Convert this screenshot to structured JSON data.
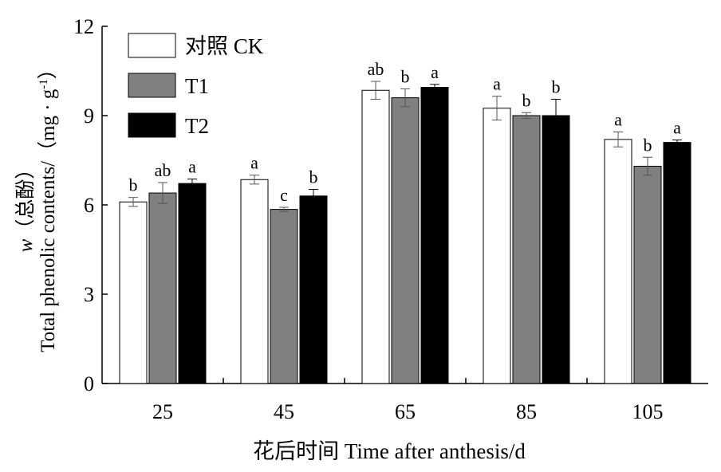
{
  "chart_data": {
    "type": "bar",
    "ylabel_line1_italic": "w",
    "ylabel_line1_rest": "（总酚）",
    "ylabel_line2_main": "Total phenolic contents/（mg · g",
    "ylabel_line2_sup": "-1",
    "ylabel_line2_end": "）",
    "xlabel": "花后时间 Time after anthesis/d",
    "categories": [
      "25",
      "45",
      "65",
      "85",
      "105"
    ],
    "ylim": [
      0,
      12
    ],
    "yticks": [
      0,
      3,
      6,
      9,
      12
    ],
    "legend_position": "top-left",
    "series": [
      {
        "name": "对照 CK",
        "color": "#ffffff",
        "values": [
          6.1,
          6.85,
          9.85,
          9.25,
          8.2
        ],
        "errors": [
          0.15,
          0.15,
          0.3,
          0.4,
          0.25
        ],
        "letters": [
          "b",
          "a",
          "ab",
          "a",
          "a"
        ]
      },
      {
        "name": "T1",
        "color": "#808080",
        "values": [
          6.4,
          5.85,
          9.6,
          9.0,
          7.3
        ],
        "errors": [
          0.35,
          0.07,
          0.3,
          0.1,
          0.3
        ],
        "letters": [
          "ab",
          "c",
          "b",
          "b",
          "b"
        ]
      },
      {
        "name": "T2",
        "color": "#000000",
        "values": [
          6.72,
          6.3,
          9.95,
          9.0,
          8.1
        ],
        "errors": [
          0.15,
          0.22,
          0.1,
          0.55,
          0.08
        ],
        "letters": [
          "a",
          "b",
          "a",
          "b",
          "a"
        ]
      }
    ]
  }
}
